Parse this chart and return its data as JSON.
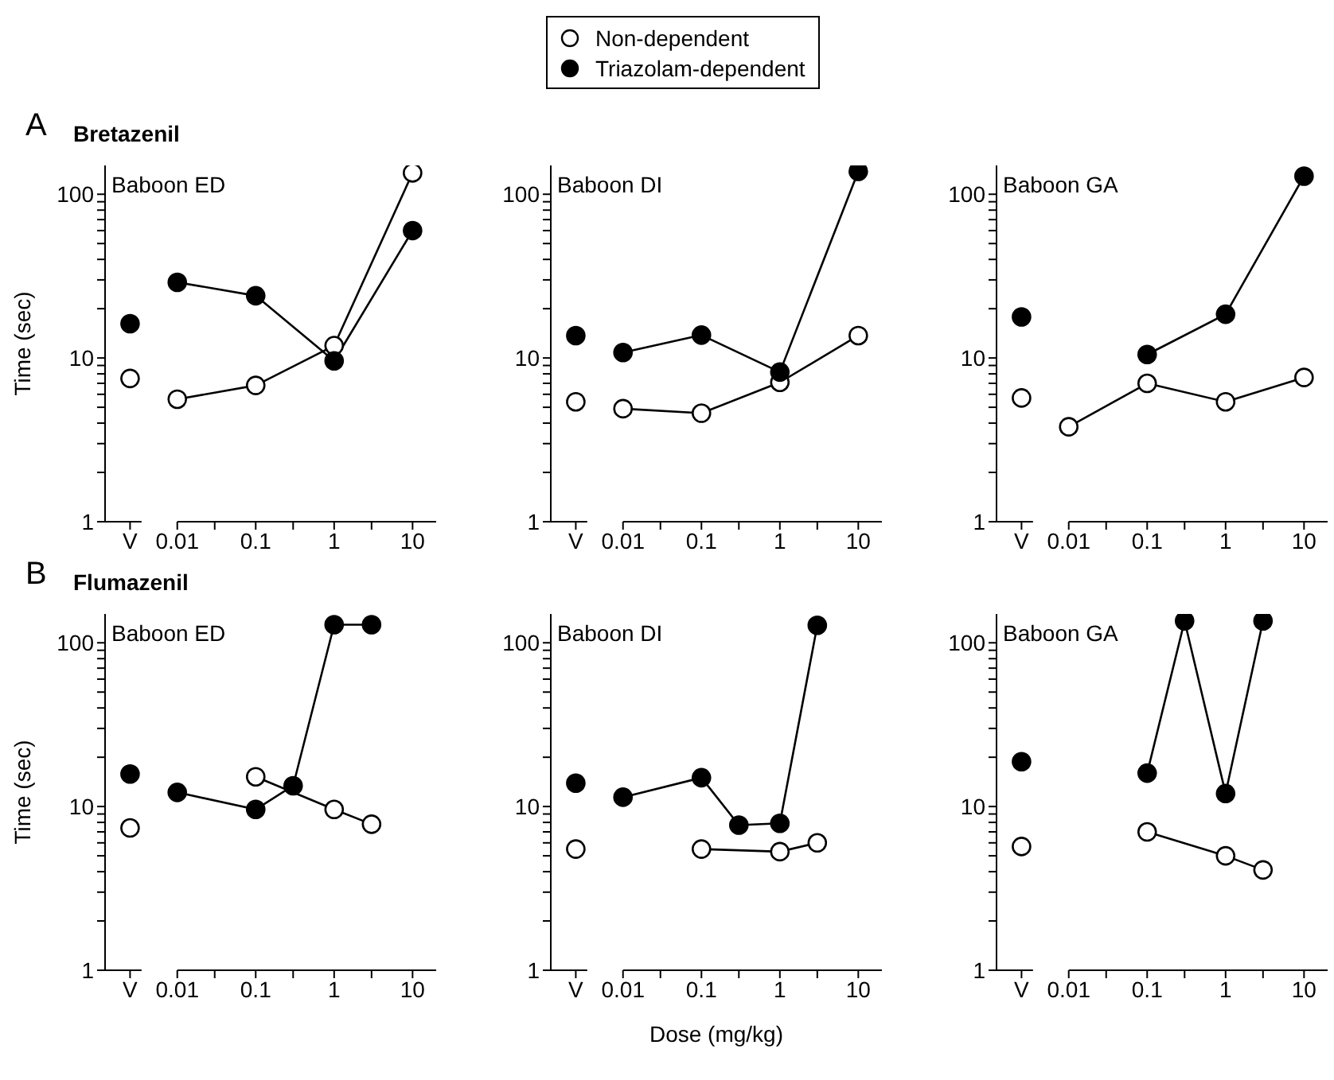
{
  "chart_data": [
    {
      "type": "line",
      "title": "A",
      "subtitle": "Bretazenil",
      "ylabel": "Time (sec)",
      "annotations": [
        "Baboon ED"
      ],
      "legend": "top",
      "marker": "circle",
      "log": "xy",
      "xlim": [
        0.0012,
        20
      ],
      "ylim": [
        1,
        150
      ],
      "xticks": [
        {
          "value": 0.0025,
          "label": "V"
        },
        0.01,
        {
          "value": 0.03,
          "label": null
        },
        0.1,
        {
          "value": 0.3,
          "label": null
        },
        1,
        {
          "value": 3,
          "label": null
        },
        10
      ],
      "yticks": [
        1,
        {
          "value": 2,
          "label": null
        },
        {
          "value": 3,
          "label": null
        },
        {
          "value": 4,
          "label": null
        },
        {
          "value": 5,
          "label": null
        },
        {
          "value": 6,
          "label": null
        },
        {
          "value": 7,
          "label": null
        },
        {
          "value": 8,
          "label": null
        },
        {
          "value": 9,
          "label": null
        },
        10,
        {
          "value": 20,
          "label": null
        },
        {
          "value": 30,
          "label": null
        },
        {
          "value": 40,
          "label": null
        },
        {
          "value": 50,
          "label": null
        },
        {
          "value": 60,
          "label": null
        },
        {
          "value": 70,
          "label": null
        },
        {
          "value": 80,
          "label": null
        },
        {
          "value": 90,
          "label": null
        },
        100
      ],
      "series": [
        {
          "name": "Non-dependent",
          "color": "#ffffff",
          "x": [
            0.01,
            0.1,
            1,
            10
          ],
          "values": [
            5.6,
            6.8,
            11.9,
            135
          ]
        },
        {
          "name": "Triazolam-dependent",
          "color": "#000000",
          "x": [
            0.01,
            0.1,
            1,
            10
          ],
          "values": [
            29,
            24,
            9.6,
            60
          ]
        },
        {
          "type": "scatter",
          "x": [
            0.0025,
            0.0025
          ],
          "values": [
            7.5,
            16.2
          ],
          "colors": [
            "#ffffff",
            "#000000"
          ]
        }
      ]
    },
    {
      "type": "line",
      "annotations": [
        "Baboon DI"
      ],
      "marker": "circle",
      "log": "xy",
      "xlim": [
        0.0012,
        20
      ],
      "ylim": [
        1,
        150
      ],
      "xticks": [
        {
          "value": 0.0025,
          "label": "V"
        },
        0.01,
        {
          "value": 0.03,
          "label": null
        },
        0.1,
        {
          "value": 0.3,
          "label": null
        },
        1,
        {
          "value": 3,
          "label": null
        },
        10
      ],
      "yticks": [
        1,
        {
          "value": 2,
          "label": null
        },
        {
          "value": 3,
          "label": null
        },
        {
          "value": 4,
          "label": null
        },
        {
          "value": 5,
          "label": null
        },
        {
          "value": 6,
          "label": null
        },
        {
          "value": 7,
          "label": null
        },
        {
          "value": 8,
          "label": null
        },
        {
          "value": 9,
          "label": null
        },
        10,
        {
          "value": 20,
          "label": null
        },
        {
          "value": 30,
          "label": null
        },
        {
          "value": 40,
          "label": null
        },
        {
          "value": 50,
          "label": null
        },
        {
          "value": 60,
          "label": null
        },
        {
          "value": 70,
          "label": null
        },
        {
          "value": 80,
          "label": null
        },
        {
          "value": 90,
          "label": null
        },
        100
      ],
      "series": [
        {
          "color": "#ffffff",
          "x": [
            0.01,
            0.1,
            1,
            10
          ],
          "values": [
            4.9,
            4.6,
            7.1,
            13.7
          ]
        },
        {
          "color": "#000000",
          "x": [
            0.01,
            0.1,
            1,
            10
          ],
          "values": [
            10.8,
            13.8,
            8.2,
            138
          ]
        },
        {
          "type": "scatter",
          "x": [
            0.0025,
            0.0025
          ],
          "values": [
            5.4,
            13.7
          ],
          "colors": [
            "#ffffff",
            "#000000"
          ]
        }
      ]
    },
    {
      "type": "line",
      "annotations": [
        "Baboon GA"
      ],
      "marker": "circle",
      "log": "xy",
      "xlim": [
        0.0012,
        20
      ],
      "ylim": [
        1,
        150
      ],
      "xticks": [
        {
          "value": 0.0025,
          "label": "V"
        },
        0.01,
        {
          "value": 0.03,
          "label": null
        },
        0.1,
        {
          "value": 0.3,
          "label": null
        },
        1,
        {
          "value": 3,
          "label": null
        },
        10
      ],
      "yticks": [
        1,
        {
          "value": 2,
          "label": null
        },
        {
          "value": 3,
          "label": null
        },
        {
          "value": 4,
          "label": null
        },
        {
          "value": 5,
          "label": null
        },
        {
          "value": 6,
          "label": null
        },
        {
          "value": 7,
          "label": null
        },
        {
          "value": 8,
          "label": null
        },
        {
          "value": 9,
          "label": null
        },
        10,
        {
          "value": 20,
          "label": null
        },
        {
          "value": 30,
          "label": null
        },
        {
          "value": 40,
          "label": null
        },
        {
          "value": 50,
          "label": null
        },
        {
          "value": 60,
          "label": null
        },
        {
          "value": 70,
          "label": null
        },
        {
          "value": 80,
          "label": null
        },
        {
          "value": 90,
          "label": null
        },
        100
      ],
      "series": [
        {
          "color": "#ffffff",
          "x": [
            0.01,
            0.1,
            1,
            10
          ],
          "values": [
            3.8,
            7.0,
            5.4,
            7.6
          ]
        },
        {
          "color": "#000000",
          "x": [
            0.1,
            1,
            10
          ],
          "values": [
            10.5,
            18.5,
            129
          ]
        },
        {
          "type": "scatter",
          "x": [
            0.0025,
            0.0025
          ],
          "values": [
            5.7,
            17.8
          ],
          "colors": [
            "#ffffff",
            "#000000"
          ]
        }
      ]
    },
    {
      "type": "line",
      "title": "B",
      "subtitle": "Flumazenil",
      "ylabel": "Time (sec)",
      "annotations": [
        "Baboon ED"
      ],
      "marker": "circle",
      "log": "xy",
      "xlim": [
        0.0012,
        20
      ],
      "ylim": [
        1,
        150
      ],
      "xticks": [
        {
          "value": 0.0025,
          "label": "V"
        },
        0.01,
        {
          "value": 0.03,
          "label": null
        },
        0.1,
        {
          "value": 0.3,
          "label": null
        },
        1,
        {
          "value": 3,
          "label": null
        },
        10
      ],
      "yticks": [
        1,
        {
          "value": 2,
          "label": null
        },
        {
          "value": 3,
          "label": null
        },
        {
          "value": 4,
          "label": null
        },
        {
          "value": 5,
          "label": null
        },
        {
          "value": 6,
          "label": null
        },
        {
          "value": 7,
          "label": null
        },
        {
          "value": 8,
          "label": null
        },
        {
          "value": 9,
          "label": null
        },
        10,
        {
          "value": 20,
          "label": null
        },
        {
          "value": 30,
          "label": null
        },
        {
          "value": 40,
          "label": null
        },
        {
          "value": 50,
          "label": null
        },
        {
          "value": 60,
          "label": null
        },
        {
          "value": 70,
          "label": null
        },
        {
          "value": 80,
          "label": null
        },
        {
          "value": 90,
          "label": null
        },
        100
      ],
      "series": [
        {
          "color": "#ffffff",
          "x": [
            0.1,
            1,
            3
          ],
          "values": [
            15.2,
            9.6,
            7.8
          ]
        },
        {
          "color": "#000000",
          "x": [
            0.01,
            0.1,
            0.3,
            1,
            3
          ],
          "values": [
            12.2,
            9.6,
            13.4,
            129,
            129
          ]
        },
        {
          "type": "scatter",
          "x": [
            0.0025,
            0.0025
          ],
          "values": [
            7.4,
            15.8
          ],
          "colors": [
            "#ffffff",
            "#000000"
          ]
        }
      ]
    },
    {
      "type": "line",
      "xlabel": "Dose (mg/kg)",
      "annotations": [
        "Baboon DI"
      ],
      "marker": "circle",
      "log": "xy",
      "xlim": [
        0.0012,
        20
      ],
      "ylim": [
        1,
        150
      ],
      "xticks": [
        {
          "value": 0.0025,
          "label": "V"
        },
        0.01,
        {
          "value": 0.03,
          "label": null
        },
        0.1,
        {
          "value": 0.3,
          "label": null
        },
        1,
        {
          "value": 3,
          "label": null
        },
        10
      ],
      "yticks": [
        1,
        {
          "value": 2,
          "label": null
        },
        {
          "value": 3,
          "label": null
        },
        {
          "value": 4,
          "label": null
        },
        {
          "value": 5,
          "label": null
        },
        {
          "value": 6,
          "label": null
        },
        {
          "value": 7,
          "label": null
        },
        {
          "value": 8,
          "label": null
        },
        {
          "value": 9,
          "label": null
        },
        10,
        {
          "value": 20,
          "label": null
        },
        {
          "value": 30,
          "label": null
        },
        {
          "value": 40,
          "label": null
        },
        {
          "value": 50,
          "label": null
        },
        {
          "value": 60,
          "label": null
        },
        {
          "value": 70,
          "label": null
        },
        {
          "value": 80,
          "label": null
        },
        {
          "value": 90,
          "label": null
        },
        100
      ],
      "series": [
        {
          "color": "#ffffff",
          "x": [
            0.1,
            1,
            3
          ],
          "values": [
            5.5,
            5.3,
            6.0
          ]
        },
        {
          "color": "#000000",
          "x": [
            0.01,
            0.1,
            0.3,
            1,
            3
          ],
          "values": [
            11.4,
            15.0,
            7.7,
            7.9,
            128
          ]
        },
        {
          "type": "scatter",
          "x": [
            0.0025,
            0.0025
          ],
          "values": [
            5.5,
            13.9
          ],
          "colors": [
            "#ffffff",
            "#000000"
          ]
        }
      ]
    },
    {
      "type": "line",
      "annotations": [
        "Baboon GA"
      ],
      "marker": "circle",
      "log": "xy",
      "xlim": [
        0.0012,
        20
      ],
      "ylim": [
        1,
        150
      ],
      "xticks": [
        {
          "value": 0.0025,
          "label": "V"
        },
        0.01,
        {
          "value": 0.03,
          "label": null
        },
        0.1,
        {
          "value": 0.3,
          "label": null
        },
        1,
        {
          "value": 3,
          "label": null
        },
        10
      ],
      "yticks": [
        1,
        {
          "value": 2,
          "label": null
        },
        {
          "value": 3,
          "label": null
        },
        {
          "value": 4,
          "label": null
        },
        {
          "value": 5,
          "label": null
        },
        {
          "value": 6,
          "label": null
        },
        {
          "value": 7,
          "label": null
        },
        {
          "value": 8,
          "label": null
        },
        {
          "value": 9,
          "label": null
        },
        10,
        {
          "value": 20,
          "label": null
        },
        {
          "value": 30,
          "label": null
        },
        {
          "value": 40,
          "label": null
        },
        {
          "value": 50,
          "label": null
        },
        {
          "value": 60,
          "label": null
        },
        {
          "value": 70,
          "label": null
        },
        {
          "value": 80,
          "label": null
        },
        {
          "value": 90,
          "label": null
        },
        100
      ],
      "series": [
        {
          "color": "#ffffff",
          "x": [
            0.1,
            1,
            3
          ],
          "values": [
            7.0,
            5.0,
            4.1
          ]
        },
        {
          "color": "#000000",
          "x": [
            0.1,
            0.3,
            1,
            3
          ],
          "values": [
            16.0,
            136,
            12.0,
            136
          ]
        },
        {
          "type": "scatter",
          "x": [
            0.0025,
            0.0025
          ],
          "values": [
            5.7,
            18.8
          ],
          "colors": [
            "#ffffff",
            "#000000"
          ]
        }
      ]
    }
  ]
}
